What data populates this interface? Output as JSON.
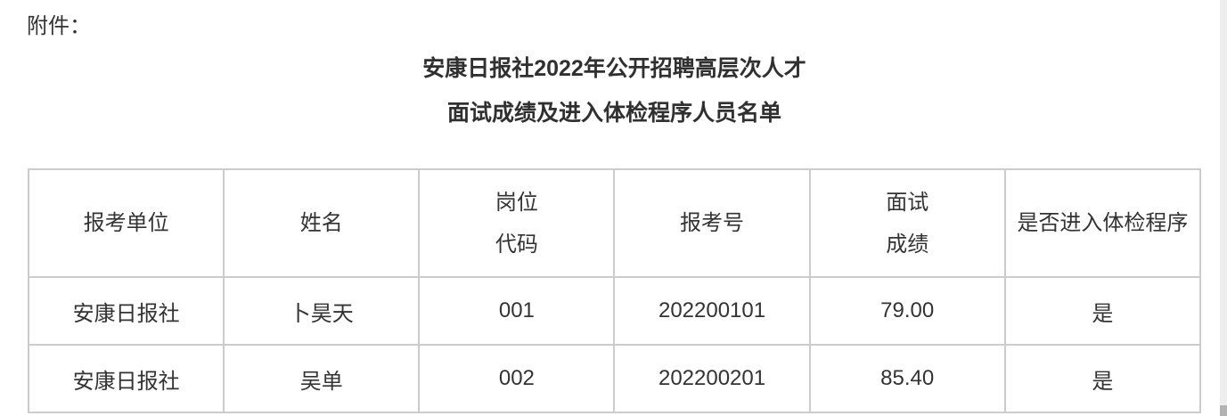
{
  "page": {
    "attachment_label": "附件：",
    "title_line1": "安康日报社2022年公开招聘高层次人才",
    "title_line2": "面试成绩及进入体检程序人员名单"
  },
  "table": {
    "columns": [
      {
        "key": "unit",
        "lines": [
          "报考单位"
        ]
      },
      {
        "key": "name",
        "lines": [
          "姓名"
        ]
      },
      {
        "key": "job-code",
        "lines": [
          "岗位",
          "代码"
        ]
      },
      {
        "key": "application-no",
        "lines": [
          "报考号"
        ]
      },
      {
        "key": "interview-score",
        "lines": [
          "面试",
          "成绩"
        ]
      },
      {
        "key": "medical-check",
        "lines": [
          "是否进入体检程序"
        ]
      }
    ],
    "rows": [
      [
        "安康日报社",
        "卜昊天",
        "001",
        "202200101",
        "79.00",
        "是"
      ],
      [
        "安康日报社",
        "吴单",
        "002",
        "202200201",
        "85.40",
        "是"
      ]
    ]
  },
  "colors": {
    "text": "#333333",
    "title": "#303030",
    "table_border": "#cccccc",
    "background": "#ffffff",
    "scrollbar_track": "#ededed",
    "scrollbar_thumb": "#b3b3b3"
  }
}
